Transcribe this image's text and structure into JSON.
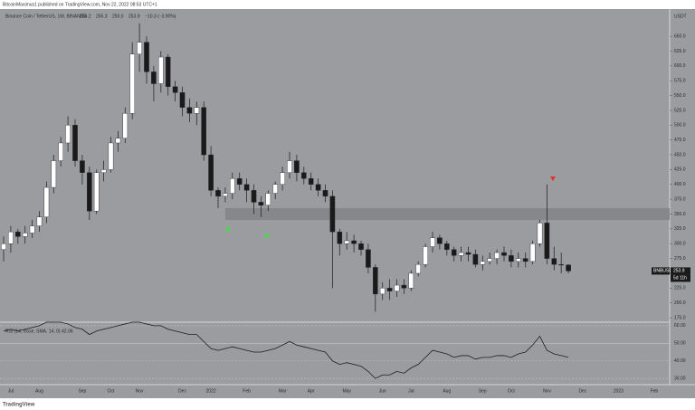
{
  "header": {
    "publisher": "BitcoinMaximus1 published on TradingView.com, Nov 22, 2022 08:53 UTC+1",
    "symbol": "Binance Coin / TetherUS, 1W, BINANCE",
    "open": "264.2",
    "high": "265.3",
    "low": "250.0",
    "close": "253.9",
    "change": "−10.3 (−3.90%)",
    "currency": "USDT",
    "ticker": "BNBUSDT",
    "countdown": "5d 11h",
    "logo": "TradingView"
  },
  "chart_data": [
    {
      "type": "candlestick",
      "up_color": "#ffffff",
      "down_color": "#1a1a1a",
      "background": "#9b9ca0",
      "categories": [
        null,
        "Jul",
        null,
        null,
        null,
        "Aug",
        null,
        null,
        null,
        null,
        null,
        "Sep",
        null,
        null,
        null,
        "Oct",
        null,
        null,
        null,
        "Nov",
        null,
        null,
        null,
        null,
        null,
        "Dec",
        null,
        null,
        null,
        "2022",
        null,
        null,
        null,
        null,
        "Feb",
        null,
        null,
        null,
        null,
        "Mar",
        null,
        null,
        null,
        "Apr",
        null,
        null,
        null,
        null,
        "May",
        null,
        null,
        null,
        null,
        "Jun",
        null,
        null,
        null,
        "Jul",
        null,
        null,
        null,
        null,
        "Aug",
        null,
        null,
        null,
        null,
        "Sep",
        null,
        null,
        null,
        "Oct",
        null,
        null,
        null,
        null,
        "Nov",
        null,
        null,
        null,
        null,
        "Dec",
        null,
        null,
        null,
        null,
        "2023",
        null,
        null,
        null,
        null,
        "Feb",
        null,
        null
      ],
      "open": [
        290,
        300,
        320,
        312,
        318,
        330,
        345,
        395,
        440,
        470,
        500,
        440,
        420,
        355,
        420,
        425,
        470,
        478,
        520,
        620,
        640,
        590,
        570,
        615,
        565,
        555,
        530,
        520,
        530,
        450,
        390,
        380,
        385,
        410,
        400,
        390,
        370,
        365,
        385,
        400,
        420,
        440,
        420,
        410,
        400,
        390,
        380,
        320,
        300,
        305,
        300,
        290,
        260,
        215,
        225,
        220,
        230,
        225,
        250,
        265,
        295,
        310,
        300,
        290,
        280,
        285,
        282,
        265,
        270,
        275,
        285,
        280,
        270,
        275,
        270,
        300,
        335,
        275,
        265,
        264.2,
        null,
        null,
        null,
        null,
        null,
        null,
        null,
        null,
        null,
        null,
        null,
        null,
        null,
        null
      ],
      "high": [
        312,
        330,
        325,
        330,
        340,
        355,
        405,
        450,
        480,
        515,
        510,
        450,
        430,
        425,
        440,
        480,
        490,
        530,
        640,
        672,
        650,
        600,
        625,
        620,
        575,
        565,
        545,
        540,
        540,
        465,
        395,
        395,
        420,
        420,
        410,
        400,
        380,
        390,
        405,
        430,
        455,
        450,
        430,
        420,
        410,
        400,
        390,
        325,
        320,
        315,
        305,
        300,
        265,
        235,
        240,
        240,
        240,
        255,
        270,
        300,
        320,
        315,
        305,
        295,
        295,
        295,
        290,
        280,
        285,
        290,
        295,
        290,
        285,
        285,
        305,
        340,
        400,
        295,
        285,
        265.3,
        null,
        null,
        null,
        null,
        null,
        null,
        null,
        null,
        null,
        null,
        null,
        null,
        null,
        null
      ],
      "low": [
        270,
        285,
        300,
        300,
        310,
        320,
        335,
        385,
        430,
        455,
        430,
        400,
        340,
        350,
        405,
        420,
        455,
        470,
        510,
        590,
        570,
        540,
        555,
        550,
        540,
        515,
        505,
        500,
        440,
        380,
        360,
        370,
        375,
        390,
        370,
        350,
        345,
        355,
        375,
        390,
        410,
        405,
        400,
        390,
        380,
        370,
        225,
        280,
        290,
        285,
        280,
        250,
        185,
        205,
        205,
        210,
        215,
        220,
        245,
        260,
        285,
        290,
        280,
        270,
        270,
        270,
        260,
        255,
        265,
        265,
        270,
        260,
        260,
        260,
        265,
        295,
        265,
        255,
        250,
        250,
        null,
        null,
        null,
        null,
        null,
        null,
        null,
        null,
        null,
        null,
        null,
        null,
        null,
        null
      ],
      "close": [
        300,
        320,
        312,
        318,
        330,
        345,
        395,
        440,
        470,
        500,
        440,
        420,
        355,
        420,
        425,
        470,
        478,
        520,
        620,
        640,
        590,
        570,
        615,
        565,
        555,
        530,
        520,
        530,
        450,
        390,
        380,
        385,
        410,
        400,
        390,
        370,
        365,
        385,
        400,
        420,
        440,
        420,
        410,
        400,
        390,
        380,
        320,
        300,
        305,
        300,
        290,
        260,
        215,
        225,
        220,
        230,
        225,
        250,
        265,
        295,
        310,
        300,
        290,
        280,
        285,
        282,
        265,
        270,
        275,
        285,
        280,
        270,
        275,
        270,
        300,
        335,
        275,
        265,
        264.2,
        253.9,
        null,
        null,
        null,
        null,
        null,
        null,
        null,
        null,
        null,
        null,
        null,
        null,
        null,
        null
      ],
      "zone": [
        340,
        360
      ],
      "zone_color": "#86878b",
      "ylim": [
        169,
        696
      ],
      "yticks": [
        {
          "value": 650,
          "label": "650.0"
        },
        {
          "value": 625,
          "label": "625.0"
        },
        {
          "value": 600,
          "label": "600.0"
        },
        {
          "value": 575,
          "label": "575.0"
        },
        {
          "value": 550,
          "label": "550.0"
        },
        {
          "value": 525,
          "label": "525.0"
        },
        {
          "value": 500,
          "label": "500.0"
        },
        {
          "value": 475,
          "label": "475.0"
        },
        {
          "value": 450,
          "label": "450.0"
        },
        {
          "value": 425,
          "label": "425.0"
        },
        {
          "value": 400,
          "label": "400.0"
        },
        {
          "value": 375,
          "label": "375.0"
        },
        {
          "value": 350,
          "label": "350.0"
        },
        {
          "value": 325,
          "label": "325.0"
        },
        {
          "value": 300,
          "label": "300.0"
        },
        {
          "value": 275,
          "label": "275.0"
        },
        {
          "value": 250,
          "label": "250.0"
        },
        {
          "value": 225,
          "label": "225.0"
        },
        {
          "value": 200,
          "label": "200.0"
        },
        {
          "value": 175,
          "label": "175.0"
        }
      ]
    },
    {
      "type": "line",
      "title": "RSI (14, close, SMA, 14, 0)",
      "last_label": "42.06",
      "color": "#1e1e1e",
      "values": [
        57,
        58,
        57,
        58,
        59,
        60,
        62,
        62,
        62,
        61,
        59,
        58,
        55,
        57,
        58,
        59,
        60,
        61,
        62,
        62,
        61,
        60,
        60,
        58,
        57,
        56,
        55,
        55,
        51,
        47,
        46,
        47,
        48,
        47,
        46,
        45,
        45,
        46,
        47,
        49,
        51,
        49,
        48,
        47,
        46,
        45,
        40,
        38,
        39,
        38,
        37,
        34,
        30,
        32,
        32,
        34,
        33,
        36,
        38,
        42,
        46,
        45,
        44,
        42,
        43,
        43,
        41,
        42,
        42,
        43,
        43,
        42,
        44,
        45,
        49,
        54,
        46,
        44,
        43,
        42.06,
        null,
        null,
        null,
        null,
        null,
        null,
        null,
        null,
        null,
        null,
        null,
        null,
        null,
        null
      ],
      "ylim": [
        27,
        62
      ],
      "yticks": [
        {
          "value": 60,
          "label": "60.00"
        },
        {
          "value": 50,
          "label": "50.00"
        },
        {
          "value": 40,
          "label": "40.00"
        },
        {
          "value": 30,
          "label": "30.00"
        }
      ]
    }
  ]
}
